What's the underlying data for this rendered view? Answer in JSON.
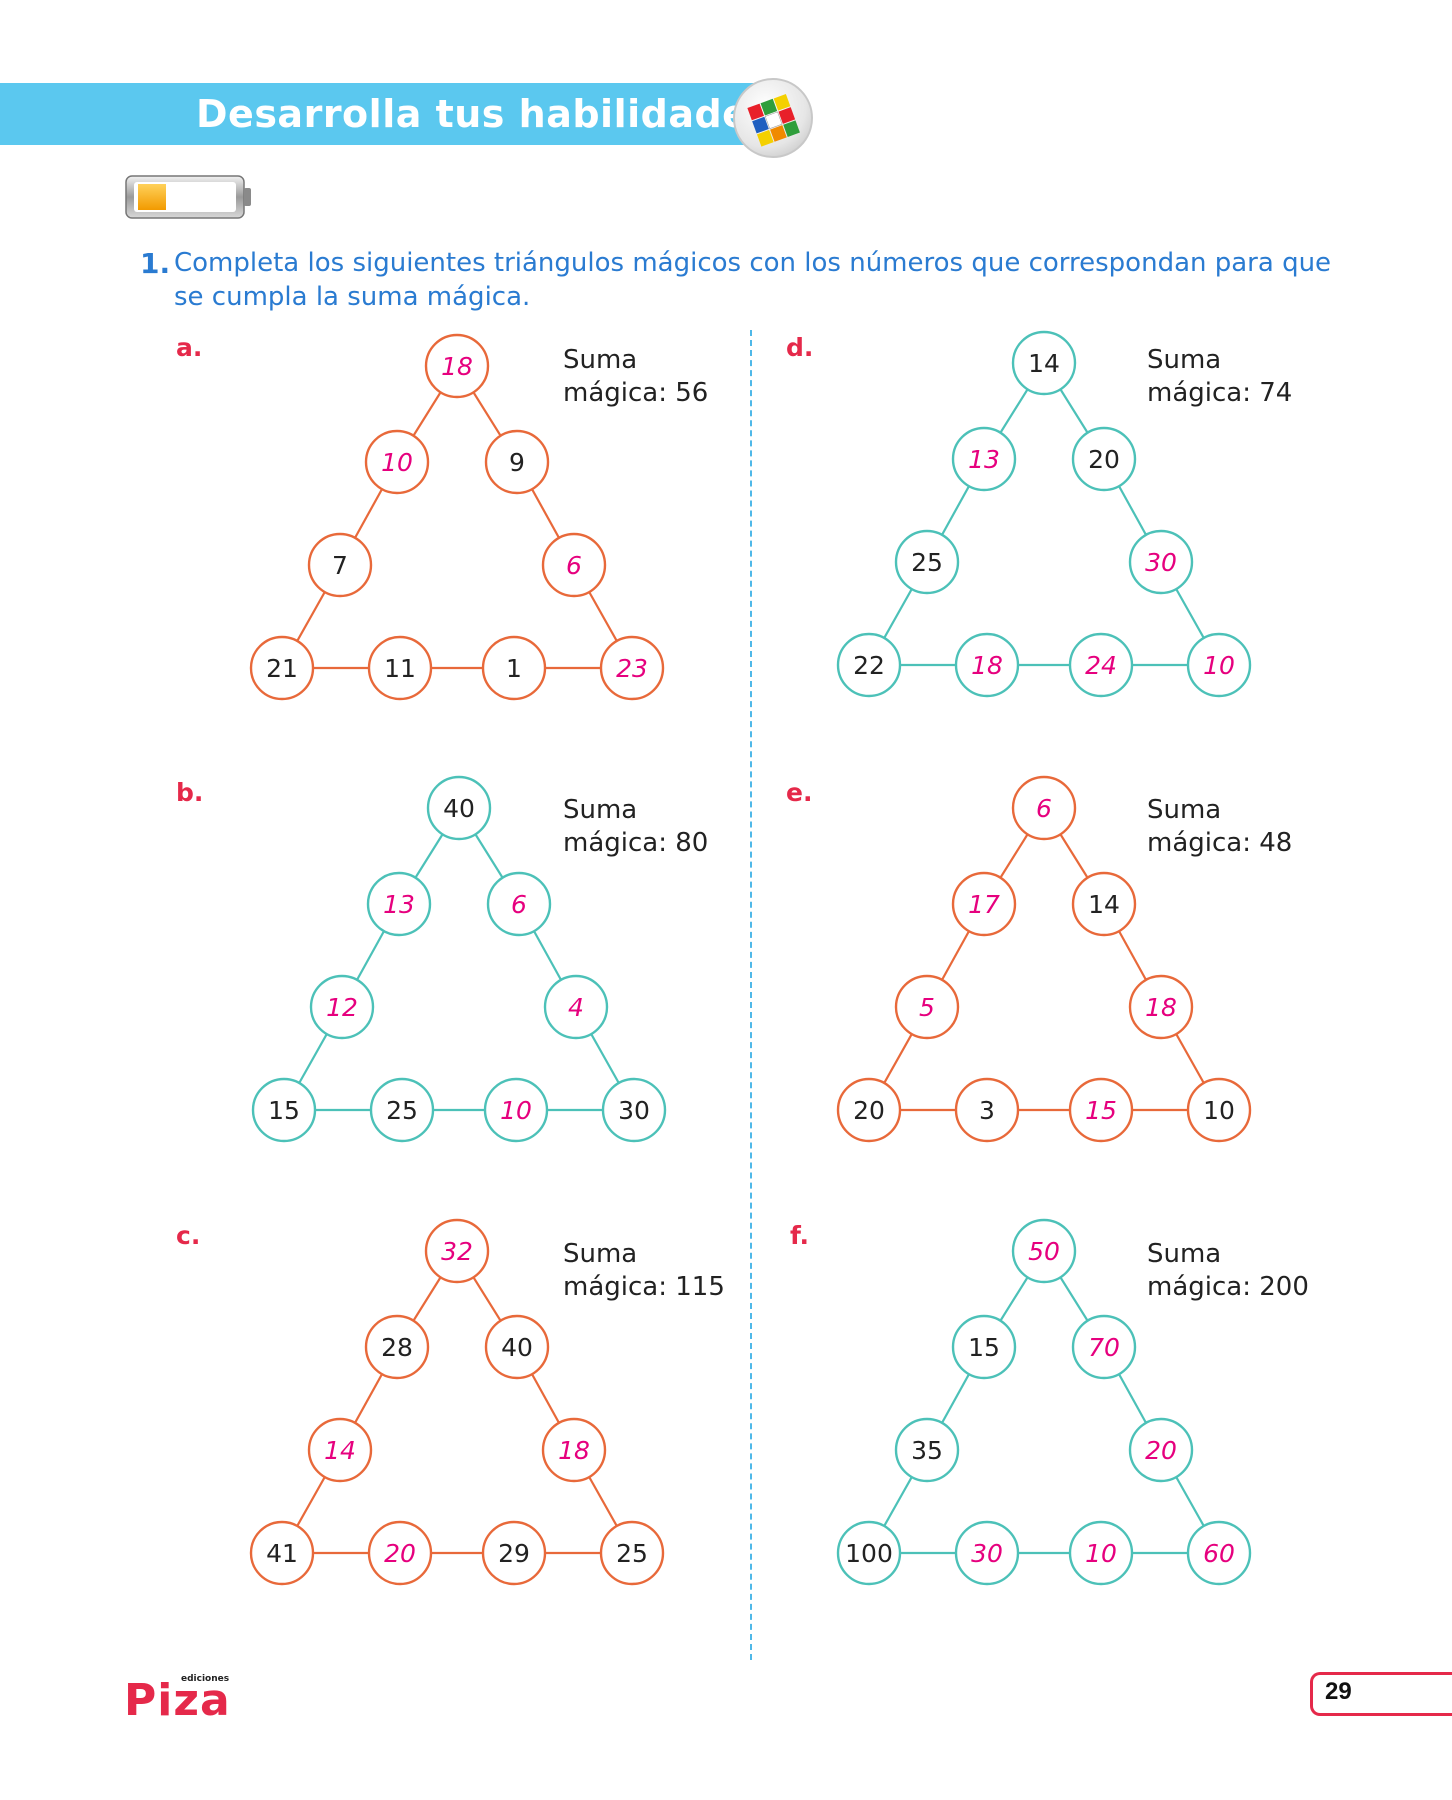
{
  "header": {
    "title": "Desarrolla tus habilidades"
  },
  "question": {
    "number": "1.",
    "text": "Completa los siguientes triángulos mágicos con los números que correspondan para que se cumpla la suma mágica."
  },
  "colors": {
    "orange": "#e8693a",
    "teal": "#4cc1b8",
    "answer": "#e6007e",
    "given": "#222222"
  },
  "triangles": [
    {
      "letter": "a.",
      "suma_label": "Suma",
      "suma_value": "mágica: 56",
      "color": "orange",
      "nodes": [
        {
          "v": "18",
          "a": true
        },
        {
          "v": "10",
          "a": true
        },
        {
          "v": "9",
          "a": false
        },
        {
          "v": "7",
          "a": false
        },
        {
          "v": "6",
          "a": true
        },
        {
          "v": "21",
          "a": false
        },
        {
          "v": "11",
          "a": false
        },
        {
          "v": "1",
          "a": false
        },
        {
          "v": "23",
          "a": true
        }
      ]
    },
    {
      "letter": "d.",
      "suma_label": "Suma",
      "suma_value": "mágica: 74",
      "color": "teal",
      "nodes": [
        {
          "v": "14",
          "a": false
        },
        {
          "v": "13",
          "a": true
        },
        {
          "v": "20",
          "a": false
        },
        {
          "v": "25",
          "a": false
        },
        {
          "v": "30",
          "a": true
        },
        {
          "v": "22",
          "a": false
        },
        {
          "v": "18",
          "a": true
        },
        {
          "v": "24",
          "a": true
        },
        {
          "v": "10",
          "a": true
        }
      ]
    },
    {
      "letter": "b.",
      "suma_label": "Suma",
      "suma_value": "mágica: 80",
      "color": "teal",
      "nodes": [
        {
          "v": "40",
          "a": false
        },
        {
          "v": "13",
          "a": true
        },
        {
          "v": "6",
          "a": true
        },
        {
          "v": "12",
          "a": true
        },
        {
          "v": "4",
          "a": true
        },
        {
          "v": "15",
          "a": false
        },
        {
          "v": "25",
          "a": false
        },
        {
          "v": "10",
          "a": true
        },
        {
          "v": "30",
          "a": false
        }
      ]
    },
    {
      "letter": "e.",
      "suma_label": "Suma",
      "suma_value": "mágica: 48",
      "color": "orange",
      "nodes": [
        {
          "v": "6",
          "a": true
        },
        {
          "v": "17",
          "a": true
        },
        {
          "v": "14",
          "a": false
        },
        {
          "v": "5",
          "a": true
        },
        {
          "v": "18",
          "a": true
        },
        {
          "v": "20",
          "a": false
        },
        {
          "v": "3",
          "a": false
        },
        {
          "v": "15",
          "a": true
        },
        {
          "v": "10",
          "a": false
        }
      ]
    },
    {
      "letter": "c.",
      "suma_label": "Suma",
      "suma_value": "mágica: 115",
      "color": "orange",
      "nodes": [
        {
          "v": "32",
          "a": true
        },
        {
          "v": "28",
          "a": false
        },
        {
          "v": "40",
          "a": false
        },
        {
          "v": "14",
          "a": true
        },
        {
          "v": "18",
          "a": true
        },
        {
          "v": "41",
          "a": false
        },
        {
          "v": "20",
          "a": true
        },
        {
          "v": "29",
          "a": false
        },
        {
          "v": "25",
          "a": false
        }
      ]
    },
    {
      "letter": "f.",
      "suma_label": "Suma",
      "suma_value": "mágica: 200",
      "color": "teal",
      "nodes": [
        {
          "v": "50",
          "a": true
        },
        {
          "v": "15",
          "a": false
        },
        {
          "v": "70",
          "a": true
        },
        {
          "v": "35",
          "a": false
        },
        {
          "v": "20",
          "a": true
        },
        {
          "v": "100",
          "a": false
        },
        {
          "v": "30",
          "a": true
        },
        {
          "v": "10",
          "a": true
        },
        {
          "v": "60",
          "a": true
        }
      ]
    }
  ],
  "footer": {
    "brand": "Piza",
    "brand_small": "ediciones",
    "page_number": "29"
  }
}
